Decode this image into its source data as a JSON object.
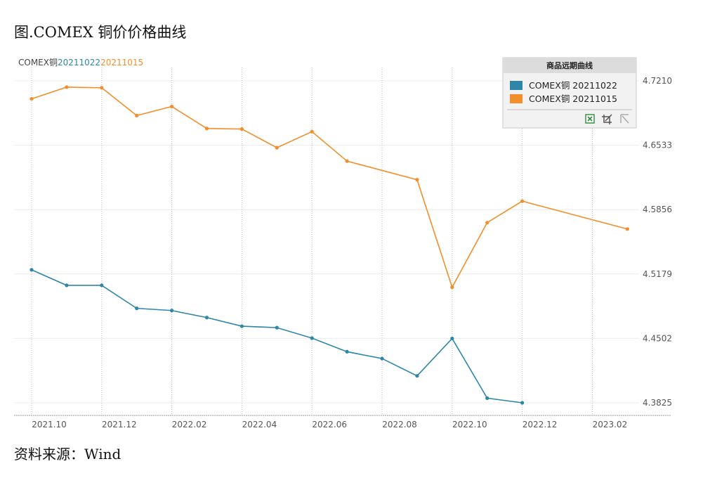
{
  "figure_title": "图.COMEX 铜价价格曲线",
  "source_text": "资料来源：Wind",
  "chart_data": {
    "type": "line",
    "header": {
      "prefix": "COMEX铜",
      "parts": [
        {
          "text": "20211022",
          "color": "#2e86a8"
        },
        {
          "text": "20211015",
          "color": "#f28e2b"
        }
      ]
    },
    "x_ticks": [
      "2021.10",
      "2021.12",
      "2022.02",
      "2022.04",
      "2022.06",
      "2022.08",
      "2022.10",
      "2022.12",
      "2023.02"
    ],
    "y_ticks": [
      "4.3825",
      "4.4502",
      "4.5179",
      "4.5856",
      "4.6533",
      "4.7210"
    ],
    "ylim": [
      4.3825,
      4.721
    ],
    "grid": true,
    "legend": {
      "title": "商品远期曲线",
      "placement": "top-right",
      "items": [
        {
          "label": "COMEX铜 20211022",
          "color": "#2e86a8"
        },
        {
          "label": "COMEX铜 20211015",
          "color": "#f28e2b"
        }
      ]
    },
    "series": [
      {
        "name": "COMEX铜 20211015",
        "color": "#f28e2b",
        "x": [
          "2021.10",
          "2021.11",
          "2021.12",
          "2022.01",
          "2022.02",
          "2022.03",
          "2022.04",
          "2022.05",
          "2022.06",
          "2022.07",
          "2022.09",
          "2022.10",
          "2022.11",
          "2022.12",
          "2023.03"
        ],
        "values": [
          4.7021,
          4.7144,
          4.7137,
          4.6845,
          4.694,
          4.6709,
          4.6703,
          4.6507,
          4.6676,
          4.6366,
          4.617,
          4.504,
          4.5719,
          4.5945,
          4.5652
        ]
      },
      {
        "name": "COMEX铜 20211022",
        "color": "#2e86a8",
        "x": [
          "2021.10",
          "2021.11",
          "2021.12",
          "2022.01",
          "2022.02",
          "2022.03",
          "2022.04",
          "2022.05",
          "2022.06",
          "2022.07",
          "2022.08",
          "2022.09",
          "2022.10",
          "2022.11",
          "2022.12"
        ],
        "values": [
          4.5223,
          4.506,
          4.506,
          4.4818,
          4.4795,
          4.4721,
          4.463,
          4.4615,
          4.4505,
          4.4362,
          4.429,
          4.4108,
          4.4501,
          4.3874,
          4.3825
        ]
      }
    ]
  }
}
